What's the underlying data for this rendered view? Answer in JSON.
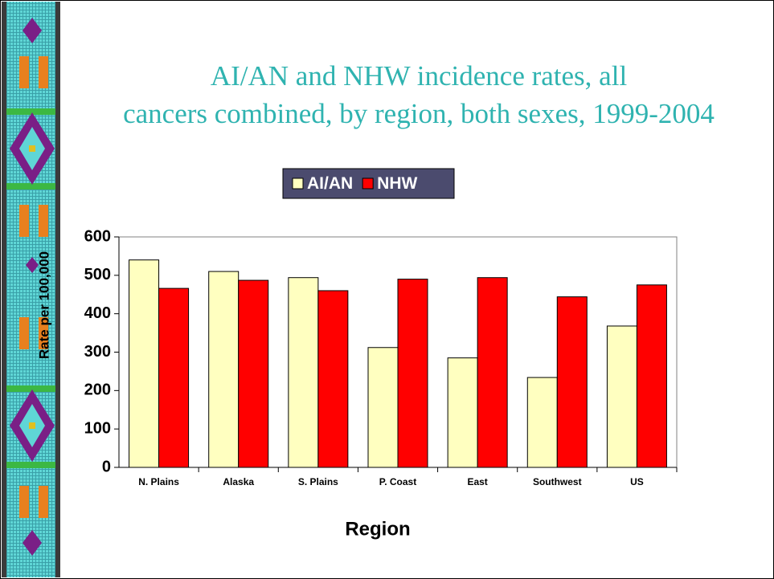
{
  "chart_data": {
    "type": "bar",
    "title": "AI/AN and NHW incidence rates, all\ncancers combined, by region, both sexes, 1999-2004",
    "categories": [
      "N. Plains",
      "Alaska",
      "S. Plains",
      "P. Coast",
      "East",
      "Southwest",
      "US"
    ],
    "series": [
      {
        "name": "AI/AN",
        "color": "#ffffc0",
        "values": [
          540,
          510,
          494,
          312,
          285,
          234,
          368
        ]
      },
      {
        "name": "NHW",
        "color": "#ff0000",
        "values": [
          466,
          487,
          460,
          490,
          494,
          444,
          475
        ]
      }
    ],
    "ylim": [
      0,
      600
    ],
    "yticks": [
      0,
      100,
      200,
      300,
      400,
      500,
      600
    ],
    "ylabel": "Rate per 100,000",
    "xlabel": "Region",
    "legend": "top",
    "grid": false
  }
}
